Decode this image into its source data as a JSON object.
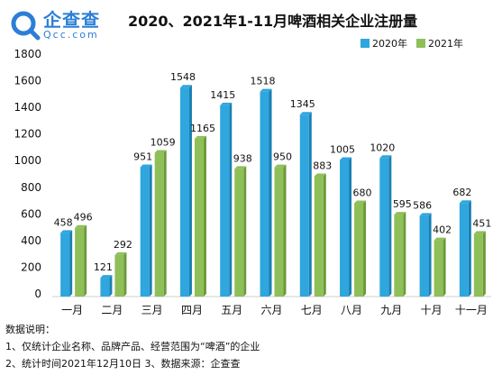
{
  "logo": {
    "name_cn": "企查查",
    "name_en": "Qcc.com"
  },
  "colors": {
    "series_2020": "#2fa6dd",
    "series_2021": "#8fbf58",
    "text": "#111111"
  },
  "chart_data": {
    "type": "bar",
    "title": "2020、2021年1-11月啤酒相关企业注册量",
    "categories": [
      "一月",
      "二月",
      "三月",
      "四月",
      "五月",
      "六月",
      "七月",
      "八月",
      "九月",
      "十月",
      "十一月"
    ],
    "series": [
      {
        "name": "2020年",
        "values": [
          458,
          121,
          951,
          1548,
          1415,
          1518,
          1345,
          1005,
          1020,
          586,
          682
        ]
      },
      {
        "name": "2021年",
        "values": [
          496,
          292,
          1059,
          1165,
          938,
          950,
          883,
          680,
          595,
          402,
          451
        ]
      }
    ],
    "ylim": [
      0,
      1800
    ],
    "yticks": [
      0,
      200,
      400,
      600,
      800,
      1000,
      1200,
      1400,
      1600,
      1800
    ],
    "grid": true,
    "legend": "top-right",
    "xlabel": "",
    "ylabel": ""
  },
  "notes": {
    "heading": "数据说明：",
    "line1": "1、仅统计企业名称、品牌产品、经营范围为“啤酒”的企业",
    "line2": "2、统计时间2021年12月10日  3、数据来源：企查查"
  }
}
